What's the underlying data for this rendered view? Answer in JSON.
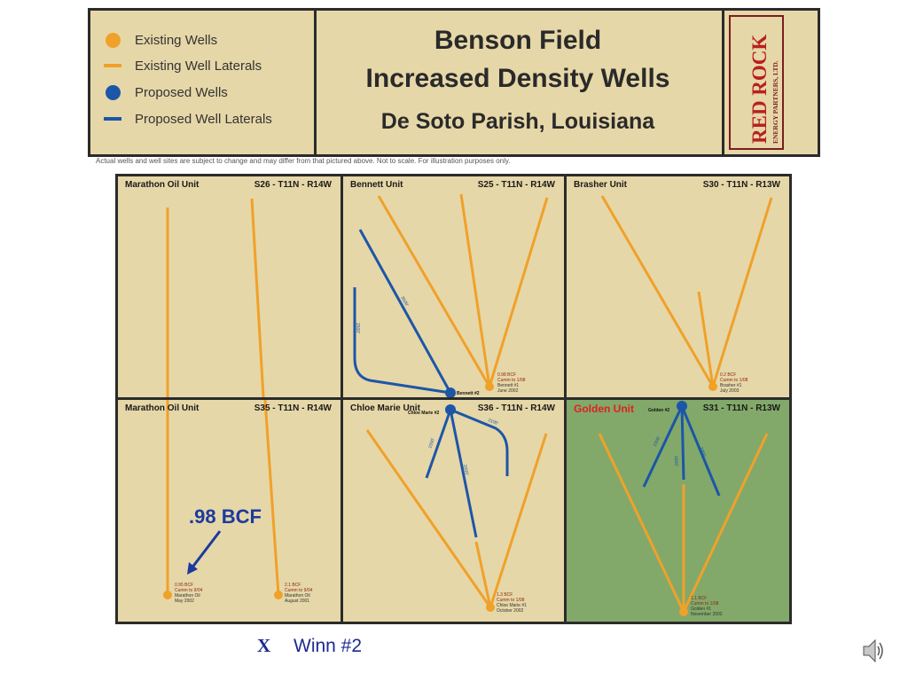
{
  "legend": {
    "items": [
      {
        "label": "Existing Wells",
        "symbol": "dot",
        "color": "#f0a12a"
      },
      {
        "label": "Existing Well Laterals",
        "symbol": "line",
        "color": "#f0a12a"
      },
      {
        "label": "Proposed Wells",
        "symbol": "dot",
        "color": "#1c56a8"
      },
      {
        "label": "Proposed Well Laterals",
        "symbol": "line",
        "color": "#1c56a8"
      }
    ]
  },
  "title": {
    "line1": "Benson Field",
    "line2": "Increased Density Wells",
    "line3": "De Soto Parish, Louisiana"
  },
  "logo": {
    "line1": "RED ROCK",
    "line2": "ENERGY PARTNERS, LTD."
  },
  "disclaimer": "Actual wells and well sites are subject to change and may differ from that pictured above.  Not to scale.  For illustration purposes only.",
  "colors": {
    "existing": "#f0a12a",
    "proposed": "#1c56a8",
    "panel": "#e6d7a8",
    "golden_panel": "#82a96a",
    "border": "#2b2b2b"
  },
  "panels": {
    "p1": {
      "unit": "Marathon Oil Unit",
      "section": "S26 - T11N - R14W"
    },
    "p2": {
      "unit": "Bennett Unit",
      "section": "S25 - T11N - R14W",
      "well": {
        "l1": "0.98 BCF",
        "l2": "Cumm to 1/08",
        "l3": "Bennett #1",
        "l4": "June 2002"
      },
      "proposed_name": "Bennett #2",
      "lat_a": "3500'",
      "lat_b": "1500'"
    },
    "p3": {
      "unit": "Brasher Unit",
      "section": "S30 - T11N - R13W",
      "well": {
        "l1": "0.2 BCF",
        "l2": "Cumm to 1/08",
        "l3": "Brasher #1",
        "l4": "July 2003"
      }
    },
    "p4": {
      "unit": "Marathon Oil Unit",
      "section": "S35 - T11N - R14W",
      "well_a": {
        "l1": "0.95 BCF",
        "l2": "Cumm to 9/04",
        "l3": "Marathon Oil",
        "l4": "May 2002"
      },
      "well_b": {
        "l1": "2.1 BCF",
        "l2": "Cumm to 9/04",
        "l3": "Marathon Oil",
        "l4": "August 2001"
      }
    },
    "p5": {
      "unit": "Chloe Marie Unit",
      "section": "S36 - T11N - R14W",
      "well": {
        "l1": "1.3 BCF",
        "l2": "Cumm to 1/08",
        "l3": "Chloe Marie #1",
        "l4": "October 2002"
      },
      "proposed_name": "Chloe Marie #2",
      "lat_a": "1500'",
      "lat_b": "2500'",
      "lat_c": "2100'"
    },
    "p6": {
      "unit": "Golden Unit",
      "section": "S31 - T11N - R13W",
      "well": {
        "l1": "1.1 BCF",
        "l2": "Cumm to 1/08",
        "l3": "Golden #1",
        "l4": "November 2002"
      },
      "proposed_name": "Golden #2",
      "lat_a": "1500'",
      "lat_b": "1500'",
      "lat_c": "2000'"
    }
  },
  "annotation": ".98 BCF",
  "footer": {
    "x_mark": "X",
    "label": "Winn #2"
  },
  "speaker_icon": "speaker-icon"
}
